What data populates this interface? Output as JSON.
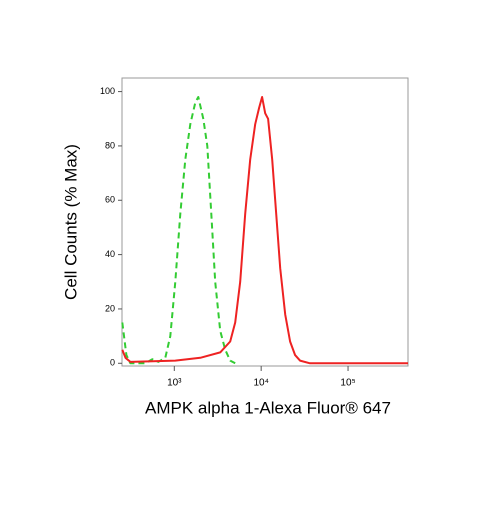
{
  "chart_data": {
    "type": "line",
    "ylabel": "Cell Counts (% Max)",
    "xlabel": "AMPK alpha 1-Alexa Fluor® 647",
    "xscale": "log",
    "xlim": [
      250,
      490000
    ],
    "ylim": [
      -1,
      105
    ],
    "xticks": [
      {
        "value": 1000,
        "label": "10³"
      },
      {
        "value": 10000,
        "label": "10⁴"
      },
      {
        "value": 100000,
        "label": "10⁵"
      }
    ],
    "yticks": [
      0,
      20,
      40,
      60,
      80,
      100
    ],
    "series": [
      {
        "color": "#33cc33",
        "dash": true,
        "x": [
          252,
          281,
          312,
          464,
          558,
          655,
          788,
          900,
          1027,
          1172,
          1338,
          1527,
          1743,
          1887,
          2154,
          2396,
          2663,
          2960,
          3379,
          3857,
          4402,
          5024
        ],
        "values": [
          15,
          3,
          0,
          0,
          1.5,
          0.5,
          2,
          10,
          30,
          55,
          75,
          88,
          96,
          98,
          90,
          80,
          55,
          30,
          12,
          5,
          1,
          0
        ]
      },
      {
        "color": "#ee2222",
        "dash": false,
        "x": [
          252,
          274,
          312,
          1027,
          1990,
          3378,
          4402,
          5024,
          5734,
          6545,
          7470,
          8526,
          9475,
          10250,
          11120,
          12010,
          13380,
          14900,
          16580,
          18900,
          21530,
          24550,
          27980,
          36470,
          490000
        ],
        "values": [
          5,
          2,
          0.5,
          1,
          2,
          4,
          8,
          15,
          30,
          55,
          75,
          88,
          94,
          98,
          92,
          90,
          75,
          55,
          35,
          18,
          8,
          3,
          1,
          0,
          0
        ]
      }
    ]
  }
}
